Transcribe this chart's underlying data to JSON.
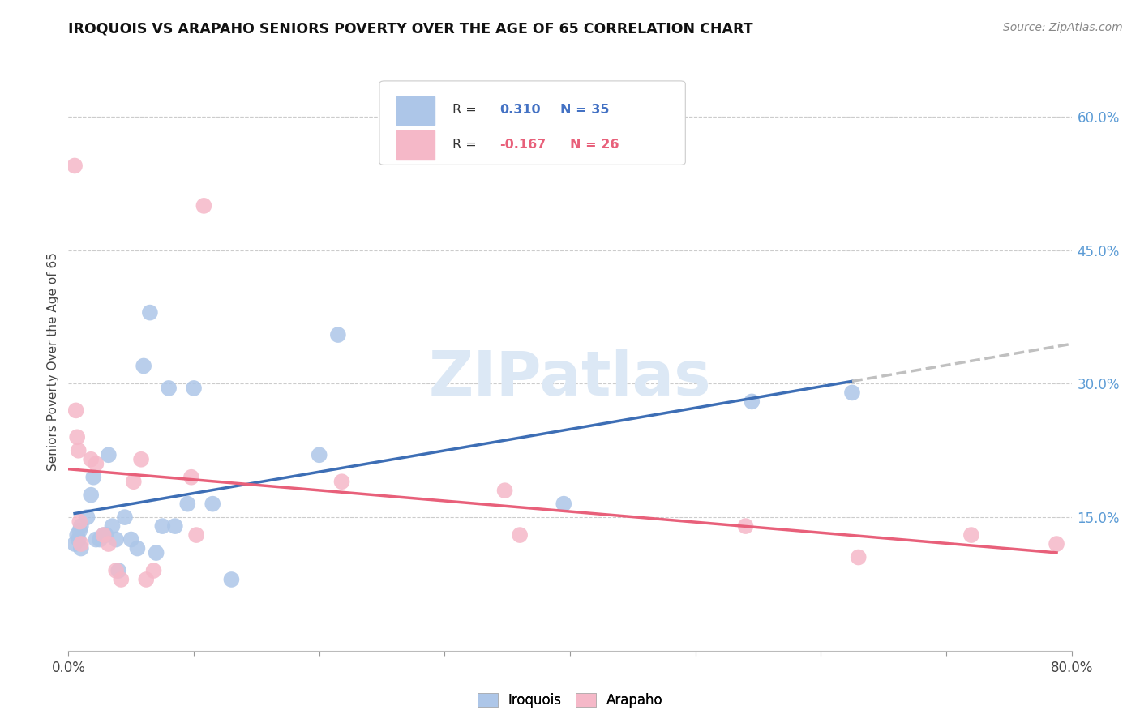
{
  "title": "IROQUOIS VS ARAPAHO SENIORS POVERTY OVER THE AGE OF 65 CORRELATION CHART",
  "source": "Source: ZipAtlas.com",
  "ylabel": "Seniors Poverty Over the Age of 65",
  "xlim": [
    0.0,
    0.8
  ],
  "ylim": [
    0.0,
    0.65
  ],
  "ytick_positions": [
    0.15,
    0.3,
    0.45,
    0.6
  ],
  "ytick_labels": [
    "15.0%",
    "30.0%",
    "45.0%",
    "60.0%"
  ],
  "iroquois_R": "0.310",
  "iroquois_N": "35",
  "arapaho_R": "-0.167",
  "arapaho_N": "26",
  "iroquois_color": "#adc6e8",
  "arapaho_color": "#f5b8c8",
  "iroquois_line_color": "#3d6eb5",
  "arapaho_line_color": "#e8607a",
  "trend_ext_color": "#c0c0c0",
  "watermark_text": "ZIPatlas",
  "watermark_color": "#dce8f5",
  "iroquois_x": [
    0.005,
    0.007,
    0.008,
    0.009,
    0.01,
    0.01,
    0.015,
    0.018,
    0.02,
    0.022,
    0.025,
    0.028,
    0.03,
    0.032,
    0.035,
    0.038,
    0.04,
    0.045,
    0.05,
    0.055,
    0.06,
    0.065,
    0.07,
    0.075,
    0.08,
    0.085,
    0.095,
    0.1,
    0.115,
    0.13,
    0.2,
    0.215,
    0.395,
    0.545,
    0.625
  ],
  "iroquois_y": [
    0.12,
    0.13,
    0.125,
    0.135,
    0.14,
    0.115,
    0.15,
    0.175,
    0.195,
    0.125,
    0.125,
    0.13,
    0.13,
    0.22,
    0.14,
    0.125,
    0.09,
    0.15,
    0.125,
    0.115,
    0.32,
    0.38,
    0.11,
    0.14,
    0.295,
    0.14,
    0.165,
    0.295,
    0.165,
    0.08,
    0.22,
    0.355,
    0.165,
    0.28,
    0.29
  ],
  "arapaho_x": [
    0.005,
    0.006,
    0.007,
    0.008,
    0.009,
    0.01,
    0.018,
    0.022,
    0.028,
    0.032,
    0.038,
    0.042,
    0.052,
    0.058,
    0.062,
    0.068,
    0.098,
    0.102,
    0.108,
    0.218,
    0.348,
    0.36,
    0.54,
    0.63,
    0.72,
    0.788
  ],
  "arapaho_y": [
    0.545,
    0.27,
    0.24,
    0.225,
    0.145,
    0.12,
    0.215,
    0.21,
    0.13,
    0.12,
    0.09,
    0.08,
    0.19,
    0.215,
    0.08,
    0.09,
    0.195,
    0.13,
    0.5,
    0.19,
    0.18,
    0.13,
    0.14,
    0.105,
    0.13,
    0.12
  ]
}
